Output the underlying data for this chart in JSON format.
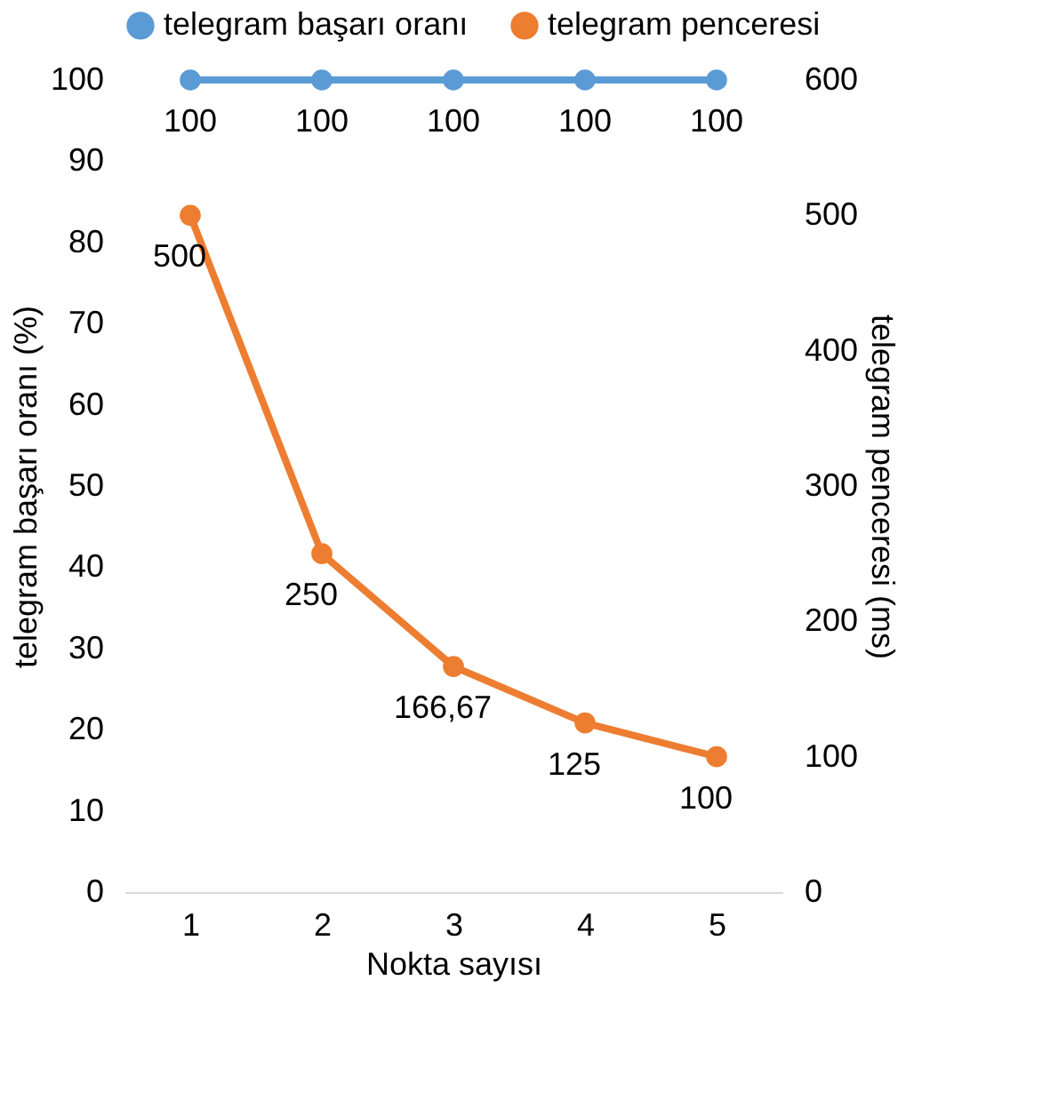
{
  "chart_data": {
    "type": "line",
    "xlabel": "Nokta sayısı",
    "ylabel": "telegram başarı oranı (%)",
    "y2label": "telegram penceresi (ms)",
    "categories": [
      "1",
      "2",
      "3",
      "4",
      "5"
    ],
    "series": [
      {
        "name": "telegram başarı oranı",
        "color": "#5b9bd5",
        "values": [
          100,
          100,
          100,
          100,
          100
        ],
        "value_labels": [
          "100",
          "100",
          "100",
          "100",
          "100"
        ]
      },
      {
        "name": "telegram penceresi",
        "color": "#ed7d31",
        "axis": "y2",
        "values": [
          500,
          250,
          166.67,
          125,
          100
        ],
        "value_labels": [
          "500",
          "250",
          "166,67",
          "125",
          "100"
        ]
      }
    ],
    "ylim": [
      0,
      100
    ],
    "yticks": [
      0,
      10,
      20,
      30,
      40,
      50,
      60,
      70,
      80,
      90,
      100
    ],
    "y2lim": [
      0,
      600
    ],
    "y2ticks": [
      0,
      100,
      200,
      300,
      400,
      500,
      600
    ],
    "data_labels": true,
    "legend": "top",
    "marker": "circle",
    "line_style": "solid"
  }
}
